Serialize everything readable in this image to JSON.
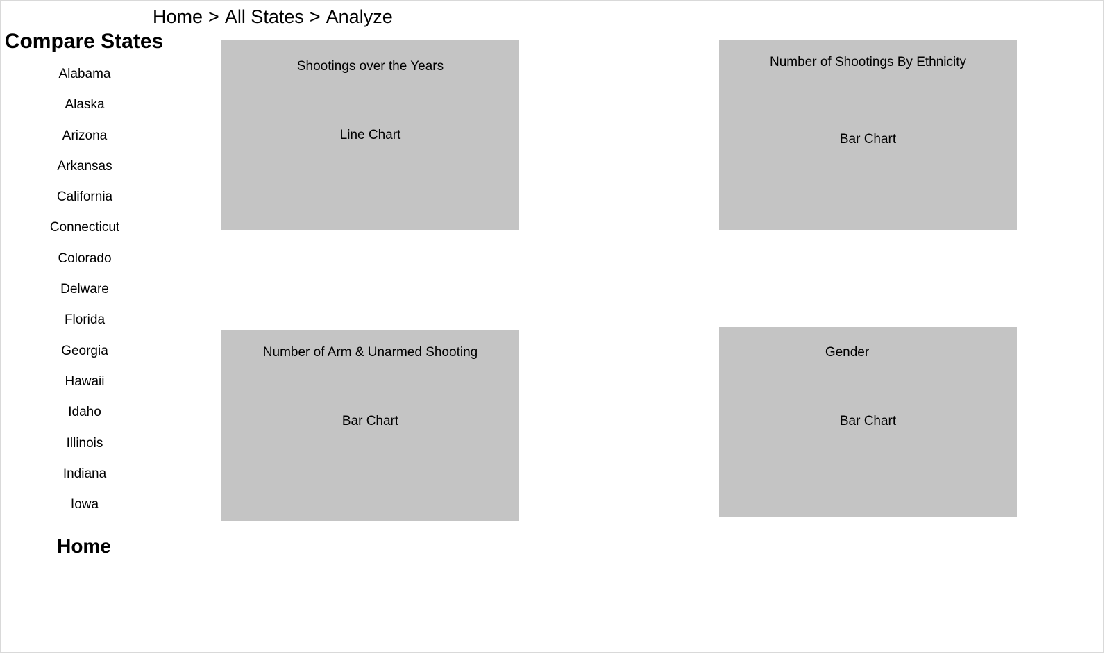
{
  "breadcrumb": {
    "items": [
      "Home",
      "All States",
      "Analyze"
    ],
    "separator": ">"
  },
  "sidebar": {
    "title": "Compare States",
    "states": [
      "Alabama",
      "Alaska",
      "Arizona",
      "Arkansas",
      "California",
      "Connecticut",
      "Colorado",
      "Delware",
      "Florida",
      "Georgia",
      "Hawaii",
      "Idaho",
      "Illinois",
      "Indiana",
      "Iowa"
    ],
    "home_label": "Home"
  },
  "panels": [
    {
      "title": "Shootings over the Years",
      "type": "Line Chart"
    },
    {
      "title": "Number of Shootings By Ethnicity",
      "type": "Bar Chart"
    },
    {
      "title": "Number of Arm & Unarmed Shooting",
      "type": "Bar Chart"
    },
    {
      "title": "Gender",
      "type": "Bar Chart"
    }
  ],
  "colors": {
    "panel_background": "#c4c4c4",
    "text": "#000000",
    "page_background": "#ffffff"
  }
}
